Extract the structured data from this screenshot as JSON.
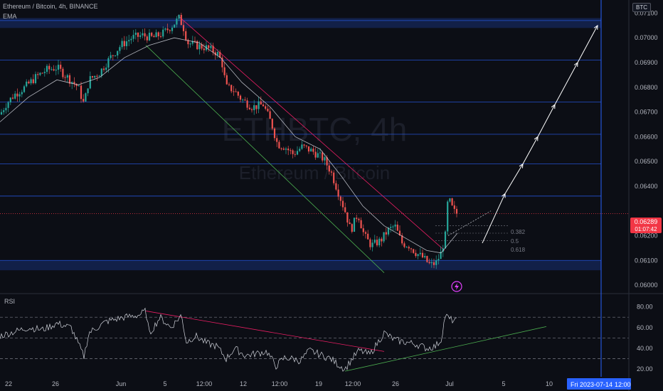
{
  "header": {
    "symbol_line": "Ethereum / Bitcoin, 4h, BINANCE",
    "indicator": "EMA",
    "currency": "BTC",
    "watermark_main": "ETHBTC, 4h",
    "watermark_sub": "Ethereum / Bitcoin"
  },
  "price_badge": {
    "value": "0.06289",
    "countdown": "01:07:42"
  },
  "fib": {
    "labels": [
      "0.382",
      "0.5",
      "0.618"
    ]
  },
  "rsi": {
    "label": "RSI",
    "ticks": [
      "80.00",
      "60.00",
      "40.00",
      "20.00"
    ]
  },
  "time_badge": {
    "left": "Fri 2023-07-14",
    "right": "12:00"
  },
  "colors": {
    "up": "#26a69a",
    "down": "#ef5350",
    "level": "#2962ff",
    "price": "#f23645"
  },
  "chart_data": {
    "type": "candlestick",
    "title": "Ethereum / Bitcoin, 4h, BINANCE",
    "ylim": [
      0.0598,
      0.0713
    ],
    "y_ticks": [
      "0.07100",
      "0.07000",
      "0.06900",
      "0.06800",
      "0.06700",
      "0.06600",
      "0.06500",
      "0.06400",
      "0.06200",
      "0.06100",
      "0.06000"
    ],
    "x_ticks": [
      "22",
      "26",
      "Jun",
      "5",
      "12:00",
      "12",
      "12:00",
      "19",
      "12:00",
      "26",
      "Jul",
      "5",
      "10"
    ],
    "levels": [
      0.0707,
      0.0691,
      0.0674,
      0.0661,
      0.0649,
      0.0636,
      0.061
    ],
    "zones": [
      [
        0.0704,
        0.0708
      ],
      [
        0.0606,
        0.061
      ]
    ],
    "current_price": 0.06289,
    "price_path": [
      [
        0,
        0.0669
      ],
      [
        8,
        0.0673
      ],
      [
        20,
        0.0677
      ],
      [
        35,
        0.068
      ],
      [
        50,
        0.0684
      ],
      [
        65,
        0.0687
      ],
      [
        80,
        0.0688
      ],
      [
        95,
        0.0684
      ],
      [
        110,
        0.068
      ],
      [
        118,
        0.0673
      ],
      [
        125,
        0.0683
      ],
      [
        140,
        0.0686
      ],
      [
        155,
        0.0692
      ],
      [
        170,
        0.0697
      ],
      [
        185,
        0.07
      ],
      [
        200,
        0.0701
      ],
      [
        215,
        0.07
      ],
      [
        230,
        0.0702
      ],
      [
        242,
        0.0705
      ],
      [
        252,
        0.0708
      ],
      [
        258,
        0.0704
      ],
      [
        264,
        0.0698
      ],
      [
        275,
        0.0697
      ],
      [
        290,
        0.0696
      ],
      [
        305,
        0.0694
      ],
      [
        312,
        0.069
      ],
      [
        318,
        0.068
      ],
      [
        328,
        0.0679
      ],
      [
        340,
        0.0675
      ],
      [
        355,
        0.0672
      ],
      [
        370,
        0.0673
      ],
      [
        382,
        0.0665
      ],
      [
        390,
        0.0657
      ],
      [
        400,
        0.0656
      ],
      [
        412,
        0.0653
      ],
      [
        425,
        0.0656
      ],
      [
        440,
        0.0654
      ],
      [
        455,
        0.0651
      ],
      [
        465,
        0.0646
      ],
      [
        475,
        0.0638
      ],
      [
        485,
        0.063
      ],
      [
        493,
        0.0622
      ],
      [
        503,
        0.0629
      ],
      [
        512,
        0.062
      ],
      [
        522,
        0.0616
      ],
      [
        535,
        0.0618
      ],
      [
        545,
        0.0622
      ],
      [
        555,
        0.0624
      ],
      [
        565,
        0.0617
      ],
      [
        575,
        0.0616
      ],
      [
        585,
        0.0613
      ],
      [
        595,
        0.0611
      ],
      [
        605,
        0.0608
      ],
      [
        613,
        0.0609
      ],
      [
        620,
        0.0613
      ],
      [
        626,
        0.062
      ],
      [
        630,
        0.0636
      ],
      [
        634,
        0.0632
      ],
      [
        640,
        0.0629
      ],
      [
        643,
        0.0629
      ]
    ],
    "ema_path": [
      [
        0,
        0.0666
      ],
      [
        40,
        0.0676
      ],
      [
        80,
        0.0683
      ],
      [
        110,
        0.0681
      ],
      [
        140,
        0.0684
      ],
      [
        175,
        0.0692
      ],
      [
        210,
        0.0697
      ],
      [
        245,
        0.07
      ],
      [
        280,
        0.0698
      ],
      [
        310,
        0.0692
      ],
      [
        340,
        0.0682
      ],
      [
        380,
        0.0672
      ],
      [
        415,
        0.066
      ],
      [
        450,
        0.0655
      ],
      [
        480,
        0.0644
      ],
      [
        510,
        0.0632
      ],
      [
        540,
        0.0624
      ],
      [
        570,
        0.0619
      ],
      [
        600,
        0.0614
      ],
      [
        620,
        0.0613
      ],
      [
        643,
        0.0621
      ]
    ],
    "trendlines": [
      {
        "color": "#e91e63",
        "from": [
          250,
          0.0709
        ],
        "to": [
          625,
          0.0614
        ]
      },
      {
        "color": "#4caf50",
        "from": [
          205,
          0.0697
        ],
        "to": [
          540,
          0.0605
        ]
      }
    ],
    "projection": [
      [
        678,
        0.0617
      ],
      [
        710,
        0.0637
      ],
      [
        735,
        0.0649
      ],
      [
        756,
        0.066
      ],
      [
        780,
        0.0673
      ],
      [
        812,
        0.069
      ],
      [
        840,
        0.0705
      ]
    ],
    "rsi_ylim": [
      14,
      90
    ],
    "rsi_levels": [
      70,
      50,
      30
    ],
    "rsi_path": [
      [
        0,
        52
      ],
      [
        20,
        56
      ],
      [
        40,
        60
      ],
      [
        60,
        58
      ],
      [
        80,
        64
      ],
      [
        100,
        60
      ],
      [
        118,
        32
      ],
      [
        125,
        55
      ],
      [
        150,
        66
      ],
      [
        175,
        70
      ],
      [
        195,
        72
      ],
      [
        205,
        76
      ],
      [
        210,
        54
      ],
      [
        225,
        70
      ],
      [
        240,
        60
      ],
      [
        255,
        72
      ],
      [
        262,
        46
      ],
      [
        275,
        52
      ],
      [
        290,
        45
      ],
      [
        305,
        42
      ],
      [
        318,
        30
      ],
      [
        330,
        40
      ],
      [
        345,
        33
      ],
      [
        360,
        35
      ],
      [
        375,
        37
      ],
      [
        388,
        23
      ],
      [
        400,
        31
      ],
      [
        412,
        30
      ],
      [
        422,
        28
      ],
      [
        435,
        38
      ],
      [
        450,
        34
      ],
      [
        465,
        30
      ],
      [
        472,
        26
      ],
      [
        485,
        20
      ],
      [
        495,
        30
      ],
      [
        505,
        38
      ],
      [
        520,
        34
      ],
      [
        540,
        55
      ],
      [
        555,
        48
      ],
      [
        570,
        46
      ],
      [
        585,
        44
      ],
      [
        600,
        40
      ],
      [
        612,
        42
      ],
      [
        620,
        48
      ],
      [
        626,
        72
      ],
      [
        632,
        68
      ],
      [
        643,
        66
      ]
    ],
    "rsi_trendlines": [
      {
        "color": "#e91e63",
        "from": [
          205,
          76
        ],
        "to": [
          540,
          37
        ]
      },
      {
        "color": "#4caf50",
        "from": [
          485,
          18
        ],
        "to": [
          768,
          61
        ]
      }
    ]
  }
}
